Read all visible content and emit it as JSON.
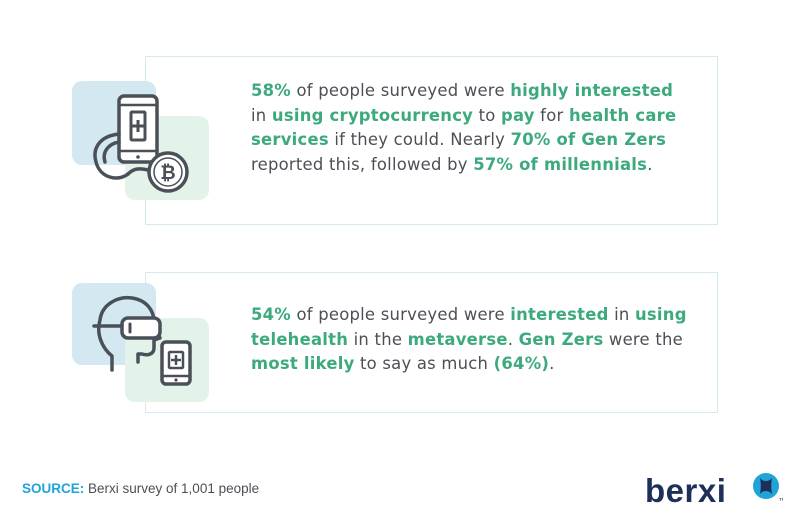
{
  "cards": [
    {
      "segments": [
        {
          "text": "58%",
          "highlight": true
        },
        {
          "text": " of people surveyed were ",
          "highlight": false
        },
        {
          "text": "highly interested",
          "highlight": true
        },
        {
          "text": " in ",
          "highlight": false
        },
        {
          "text": "using cryptocurrency",
          "highlight": true
        },
        {
          "text": " to ",
          "highlight": false
        },
        {
          "text": "pay",
          "highlight": true
        },
        {
          "text": " for ",
          "highlight": false
        },
        {
          "text": "health care services",
          "highlight": true
        },
        {
          "text": " if they could. Nearly ",
          "highlight": false
        },
        {
          "text": "70% of Gen Zers",
          "highlight": true
        },
        {
          "text": " reported this, followed by ",
          "highlight": false
        },
        {
          "text": "57% of millennials",
          "highlight": true
        },
        {
          "text": ".",
          "highlight": false
        }
      ],
      "icon": "phone-stethoscope-bitcoin-icon"
    },
    {
      "segments": [
        {
          "text": "54%",
          "highlight": true
        },
        {
          "text": " of people surveyed were ",
          "highlight": false
        },
        {
          "text": "interested",
          "highlight": true
        },
        {
          "text": " in ",
          "highlight": false
        },
        {
          "text": "using telehealth",
          "highlight": true
        },
        {
          "text": " in the ",
          "highlight": false
        },
        {
          "text": "metaverse",
          "highlight": true
        },
        {
          "text": ". ",
          "highlight": false
        },
        {
          "text": "Gen Zers",
          "highlight": true
        },
        {
          "text": " were the ",
          "highlight": false
        },
        {
          "text": "most likely",
          "highlight": true
        },
        {
          "text": " to say as much ",
          "highlight": false
        },
        {
          "text": "(64%)",
          "highlight": true
        },
        {
          "text": ".",
          "highlight": false
        }
      ],
      "icon": "vr-headset-telehealth-icon"
    }
  ],
  "source": {
    "label": "SOURCE:",
    "text": " Berxi survey of 1,001 people"
  },
  "logo": {
    "text": "berxi",
    "trademark": "TM"
  },
  "colors": {
    "highlight": "#3daa7e",
    "body_text": "#4c4f55",
    "source_label": "#1ea4d6",
    "logo_text": "#1e2f5a",
    "logo_mark": "#1ea4d6",
    "icon_bg_blue": "#d4e8f1",
    "icon_bg_green": "#e3f3ea",
    "icon_stroke": "#4a5058"
  }
}
